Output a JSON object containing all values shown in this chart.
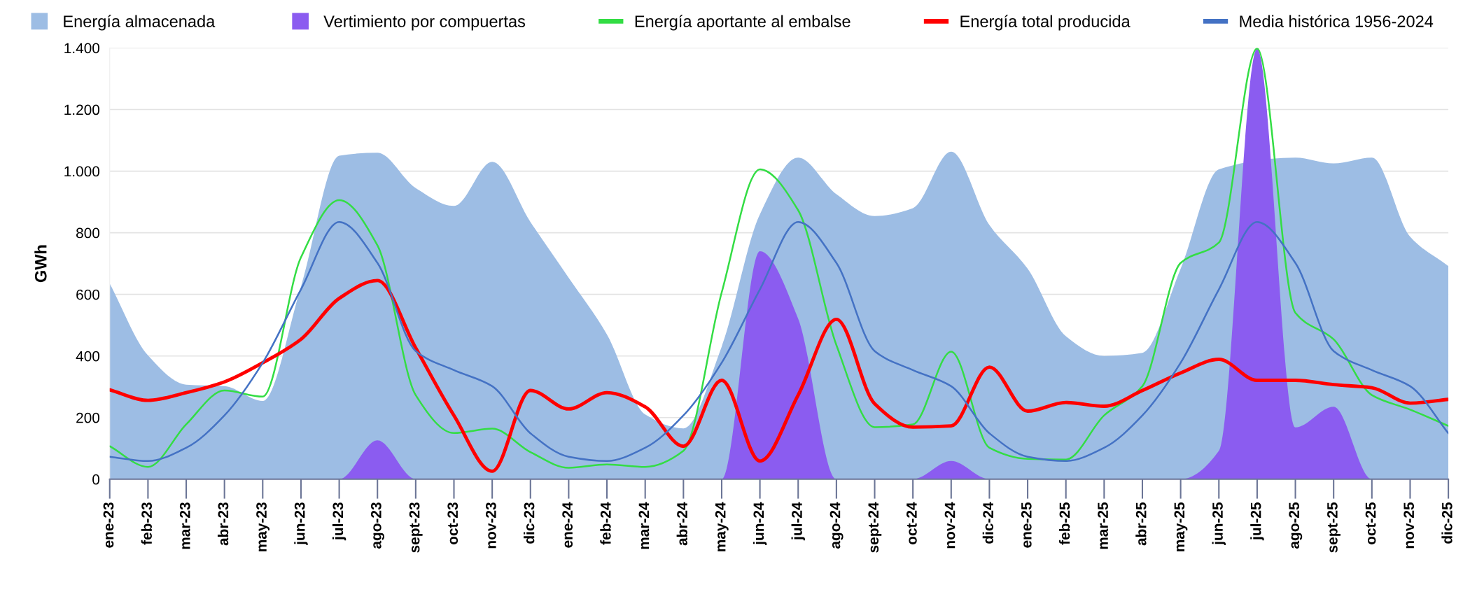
{
  "chart_data": {
    "type": "area",
    "ylabel": "GWh",
    "categories": [
      "ene-23",
      "feb-23",
      "mar-23",
      "abr-23",
      "may-23",
      "jun-23",
      "jul-23",
      "ago-23",
      "sept-23",
      "oct-23",
      "nov-23",
      "dic-23",
      "ene-24",
      "feb-24",
      "mar-24",
      "abr-24",
      "may-24",
      "jun-24",
      "jul-24",
      "ago-24",
      "sept-24",
      "oct-24",
      "nov-24",
      "dic-24",
      "ene-25",
      "feb-25",
      "mar-25",
      "abr-25",
      "may-25",
      "jun-25",
      "jul-25",
      "ago-25",
      "sept-25",
      "oct-25",
      "nov-25",
      "dic-25"
    ],
    "series": [
      {
        "name": "Energía almacenada",
        "color": "#9dbde4",
        "values": [
          635,
          402,
          307,
          302,
          254,
          625,
          1050,
          1060,
          945,
          887,
          1030,
          835,
          654,
          470,
          210,
          165,
          430,
          860,
          1044,
          925,
          854,
          880,
          1063,
          825,
          683,
          464,
          400,
          410,
          683,
          1006,
          null,
          1044,
          1025,
          1044,
          787,
          692
        ]
      },
      {
        "name": "Vertimiento por compuertas",
        "color": "#8b5cf0",
        "values": [
          0,
          0,
          0,
          0,
          0,
          0,
          0,
          126,
          0,
          0,
          0,
          0,
          0,
          0,
          0,
          0,
          0,
          740,
          521,
          0,
          0,
          0,
          59,
          0,
          0,
          0,
          0,
          0,
          0,
          92,
          1398,
          168,
          235,
          0,
          0,
          0
        ]
      },
      {
        "name": "Energía aportante al embalse",
        "type": "line",
        "color": "#33dd44",
        "values": [
          107,
          40,
          178,
          288,
          268,
          720,
          906,
          759,
          273,
          150,
          164,
          88,
          37,
          48,
          40,
          92,
          606,
          1006,
          873,
          435,
          169,
          178,
          414,
          102,
          66,
          64,
          207,
          302,
          702,
          768,
          1398,
          540,
          454,
          273,
          226,
          173
        ]
      },
      {
        "name": "Energía total producida",
        "type": "line",
        "color": "#ff0000",
        "values": [
          290,
          256,
          281,
          316,
          378,
          454,
          587,
          645,
          426,
          207,
          26,
          288,
          228,
          281,
          235,
          107,
          321,
          59,
          273,
          519,
          245,
          169,
          173,
          364,
          221,
          249,
          237,
          288,
          345,
          389,
          321,
          321,
          307,
          297,
          247,
          259
        ]
      },
      {
        "name": "Media histórica 1956-2024",
        "type": "line",
        "color": "#4472c4",
        "values": [
          73,
          59,
          102,
          207,
          378,
          616,
          835,
          702,
          416,
          354,
          302,
          149,
          73,
          59,
          102,
          207,
          378,
          616,
          835,
          702,
          416,
          354,
          302,
          149,
          73,
          59,
          102,
          207,
          378,
          616,
          835,
          702,
          416,
          354,
          302,
          149
        ]
      }
    ],
    "ylim": [
      0,
      1400
    ],
    "yticks": [
      0,
      200,
      400,
      600,
      800,
      {
        "value": 1000,
        "label": "1.000"
      },
      {
        "value": 1200,
        "label": "1.200"
      },
      {
        "value": 1400,
        "label": "1.400"
      }
    ],
    "grid": "y",
    "legend": "top"
  }
}
